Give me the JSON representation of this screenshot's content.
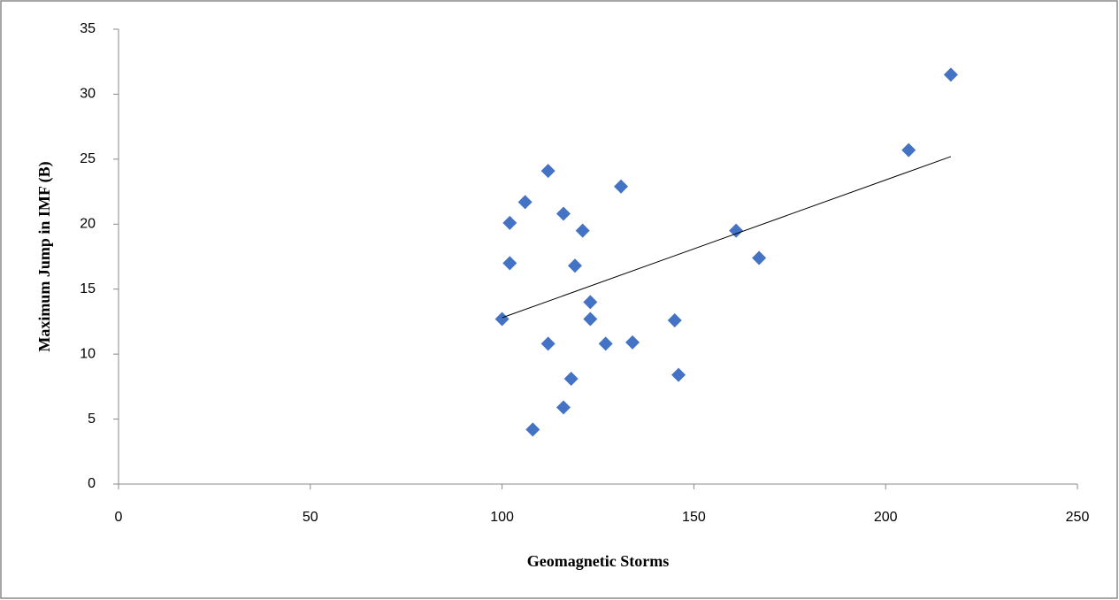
{
  "chart_data": {
    "type": "scatter",
    "x_label": "Geomagnetic Storms",
    "y_label": "Maximum Jump in IMF (B)",
    "xlim": [
      0,
      250
    ],
    "xticks": [
      0,
      50,
      100,
      150,
      200,
      250
    ],
    "ylim": [
      0,
      35
    ],
    "yticks": [
      0,
      5,
      10,
      15,
      20,
      25,
      30,
      35
    ],
    "series": [
      {
        "color": "#4472c4",
        "x": [
          100,
          102,
          102,
          106,
          108,
          112,
          112,
          116,
          116,
          118,
          119,
          121,
          123,
          123,
          127,
          131,
          134,
          145,
          146,
          161,
          167,
          206,
          217
        ],
        "values": [
          12.7,
          20.1,
          17.0,
          21.7,
          4.2,
          24.1,
          10.8,
          20.8,
          5.9,
          8.1,
          16.8,
          19.5,
          14.0,
          12.7,
          10.8,
          22.9,
          10.9,
          12.6,
          8.4,
          19.5,
          17.4,
          25.7,
          31.5
        ]
      }
    ],
    "trendline": {
      "color": "#000000",
      "x": [
        100,
        217
      ],
      "values": [
        12.8,
        25.2
      ]
    }
  }
}
